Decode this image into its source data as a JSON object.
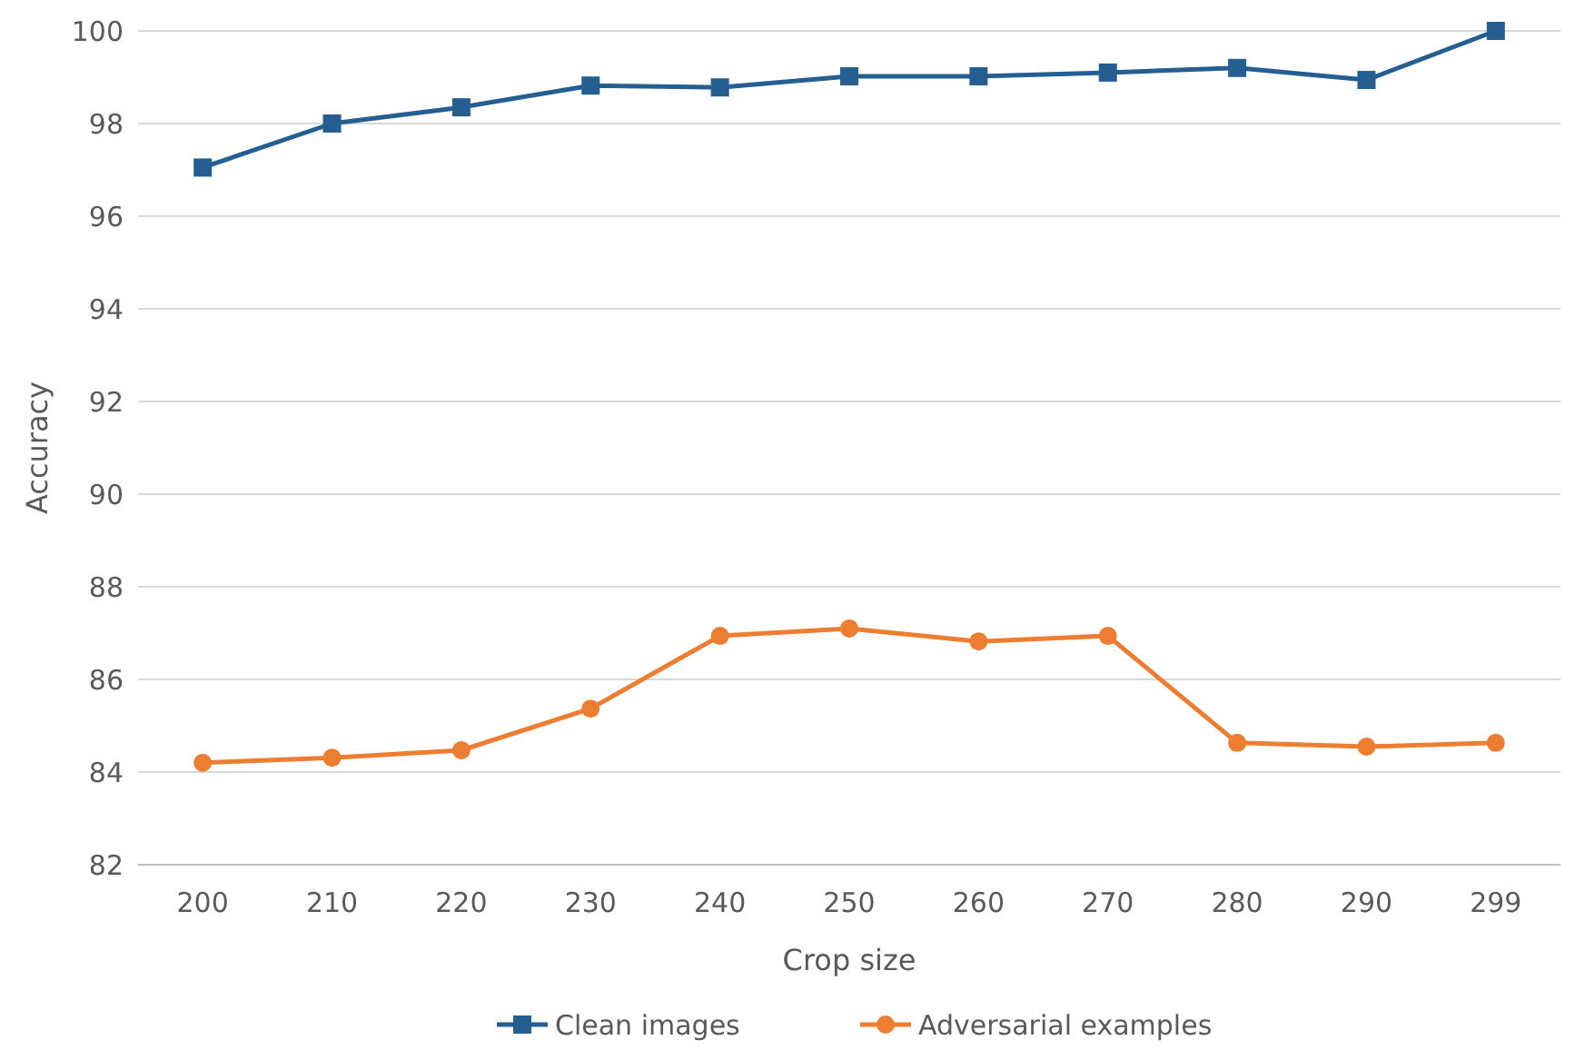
{
  "chart_data": {
    "type": "line",
    "xlabel": "Crop size",
    "ylabel": "Accuracy",
    "categories": [
      "200",
      "210",
      "220",
      "230",
      "240",
      "250",
      "260",
      "270",
      "280",
      "290",
      "299"
    ],
    "series": [
      {
        "name": "Clean images",
        "color": "#255e91",
        "marker": "square",
        "values": [
          97.05,
          98.0,
          98.35,
          98.82,
          98.78,
          99.02,
          99.02,
          99.1,
          99.2,
          98.94,
          100
        ]
      },
      {
        "name": "Adversarial examples",
        "color": "#ed7d31",
        "marker": "circle",
        "values": [
          84.2,
          84.31,
          84.47,
          85.37,
          86.94,
          87.1,
          86.82,
          86.94,
          84.63,
          84.55,
          84.63
        ]
      }
    ],
    "ylim": [
      82,
      100
    ],
    "yticks": [
      82,
      84,
      86,
      88,
      90,
      92,
      94,
      96,
      98,
      100
    ],
    "grid": "y",
    "legend": "bottom"
  }
}
